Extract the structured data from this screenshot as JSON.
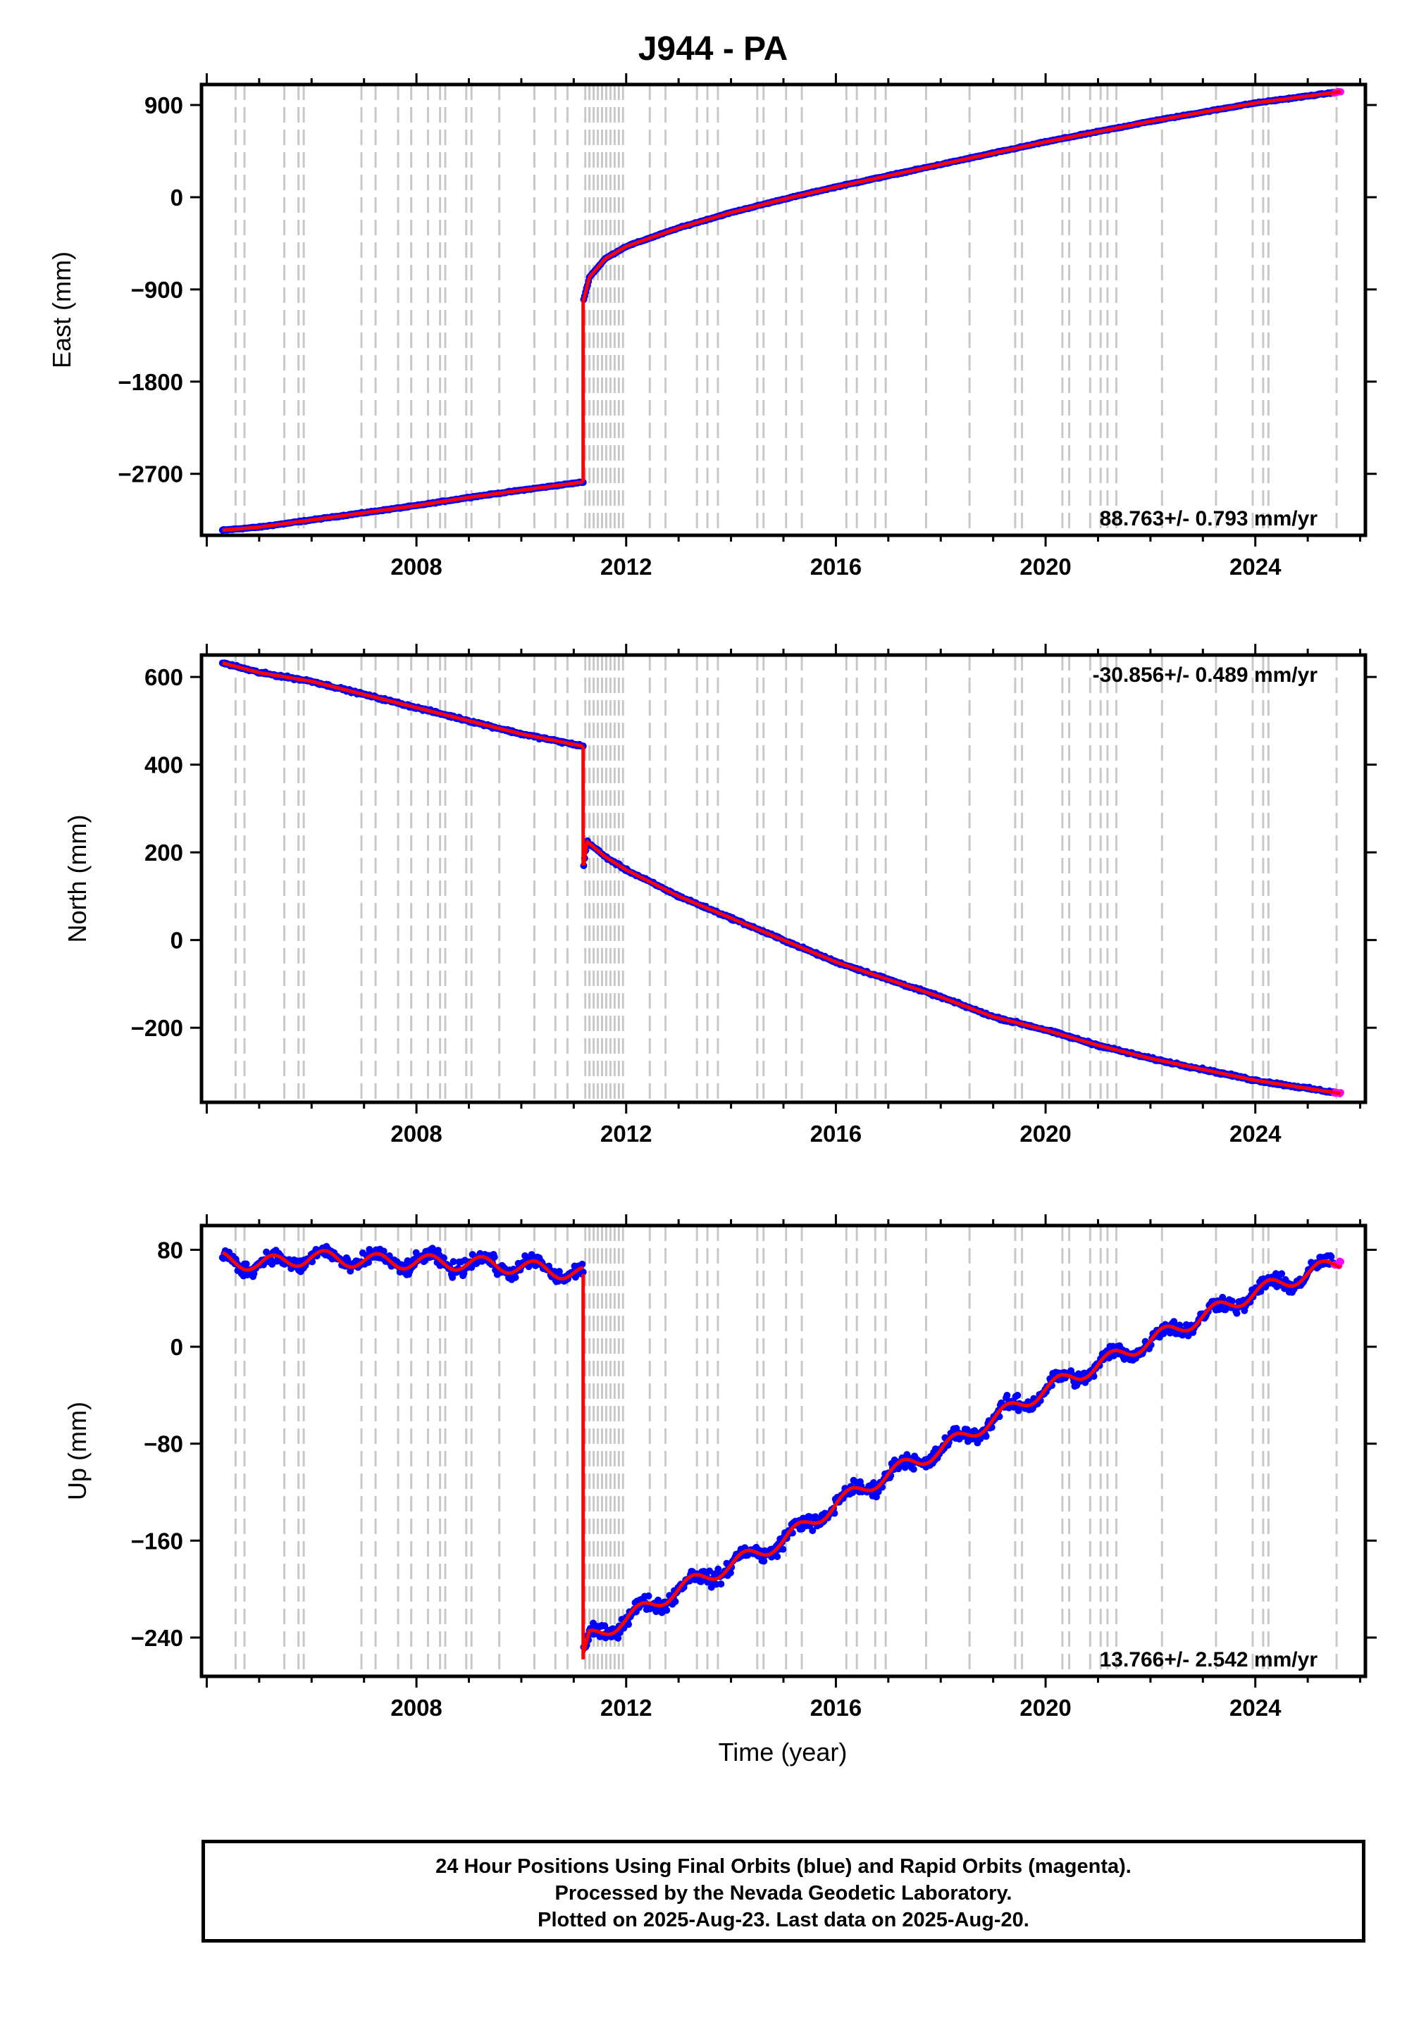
{
  "title": "J944 - PA",
  "xlabel": "Time (year)",
  "footer": {
    "line1": "24 Hour Positions Using Final Orbits (blue) and Rapid Orbits (magenta).",
    "line2": "Processed by the Nevada Geodetic Laboratory.",
    "line3": "Plotted on 2025-Aug-23. Last data on 2025-Aug-20."
  },
  "colors": {
    "final": "#0000ff",
    "rapid": "#ff00ff",
    "model": "#ff0000",
    "steps": "#c8c8c8"
  },
  "chart_data": [
    {
      "type": "scatter",
      "ylabel": "East (mm)",
      "xlim": [
        2003.9,
        2026.1
      ],
      "ylim": [
        -3300,
        1100
      ],
      "yticks": [
        900,
        0,
        -900,
        -1800,
        -2700
      ],
      "ytick_labels": [
        "900",
        "0",
        "−900",
        "−1800",
        "−2700"
      ],
      "xticks": [
        2008,
        2012,
        2016,
        2020,
        2024
      ],
      "xtick_labels": [
        "2008",
        "2012",
        "2016",
        "2020",
        "2024"
      ],
      "rate": "88.763+/- 0.793 mm/yr",
      "rate_pos": "bottom-right",
      "series": [
        {
          "segment": "pre",
          "x": [
            2004.3,
            2005.0,
            2006.0,
            2007.0,
            2008.0,
            2009.0,
            2010.0,
            2011.18
          ],
          "y": [
            -3250,
            -3220,
            -3150,
            -3080,
            -3010,
            -2930,
            -2860,
            -2780
          ]
        },
        {
          "segment": "post",
          "x": [
            2011.19,
            2011.3,
            2011.6,
            2012.0,
            2013.0,
            2014.0,
            2015.0,
            2016.0,
            2017.0,
            2018.0,
            2019.0,
            2020.0,
            2021.0,
            2022.0,
            2023.0,
            2024.0,
            2025.63
          ],
          "y": [
            -1000,
            -780,
            -600,
            -480,
            -300,
            -150,
            -20,
            100,
            210,
            320,
            430,
            540,
            640,
            740,
            830,
            920,
            1030
          ]
        }
      ]
    },
    {
      "type": "scatter",
      "ylabel": "North (mm)",
      "xlim": [
        2003.9,
        2026.1
      ],
      "ylim": [
        -370,
        650
      ],
      "yticks": [
        600,
        400,
        200,
        0,
        -200
      ],
      "ytick_labels": [
        "600",
        "400",
        "200",
        "0",
        "−200"
      ],
      "xticks": [
        2008,
        2012,
        2016,
        2020,
        2024
      ],
      "xtick_labels": [
        "2008",
        "2012",
        "2016",
        "2020",
        "2024"
      ],
      "rate": "-30.856+/- 0.489 mm/yr",
      "rate_pos": "top-right",
      "series": [
        {
          "segment": "pre",
          "x": [
            2004.3,
            2005.0,
            2006.0,
            2007.0,
            2008.0,
            2009.0,
            2010.0,
            2011.18
          ],
          "y": [
            632,
            610,
            590,
            560,
            530,
            500,
            470,
            442
          ]
        },
        {
          "segment": "post",
          "x": [
            2011.19,
            2011.25,
            2011.35,
            2011.6,
            2012.0,
            2013.0,
            2014.0,
            2015.0,
            2016.0,
            2017.0,
            2018.0,
            2019.0,
            2020.0,
            2021.0,
            2022.0,
            2023.0,
            2024.0,
            2025.63
          ],
          "y": [
            170,
            225,
            215,
            190,
            160,
            100,
            50,
            0,
            -50,
            -90,
            -130,
            -175,
            -205,
            -240,
            -270,
            -295,
            -320,
            -350
          ]
        }
      ]
    },
    {
      "type": "scatter",
      "ylabel": "Up (mm)",
      "xlabel": "Time (year)",
      "xlim": [
        2003.9,
        2026.1
      ],
      "ylim": [
        -272,
        100
      ],
      "yticks": [
        80,
        0,
        -80,
        -160,
        -240
      ],
      "ytick_labels": [
        "80",
        "0",
        "−80",
        "−160",
        "−240"
      ],
      "xticks": [
        2008,
        2012,
        2016,
        2020,
        2024
      ],
      "xtick_labels": [
        "2008",
        "2012",
        "2016",
        "2020",
        "2024"
      ],
      "rate": "13.766+/- 2.542 mm/yr",
      "rate_pos": "bottom-right",
      "series": [
        {
          "segment": "pre",
          "x": [
            2004.3,
            2005.0,
            2006.0,
            2007.0,
            2008.0,
            2009.0,
            2010.0,
            2011.18
          ],
          "y": [
            72,
            68,
            74,
            71,
            70,
            69,
            66,
            60
          ]
        },
        {
          "segment": "post",
          "x": [
            2011.19,
            2011.3,
            2012.0,
            2013.0,
            2014.0,
            2015.0,
            2016.0,
            2017.0,
            2018.0,
            2019.0,
            2020.0,
            2021.0,
            2022.0,
            2023.0,
            2024.0,
            2025.63
          ],
          "y": [
            -258,
            -240,
            -225,
            -200,
            -180,
            -160,
            -130,
            -105,
            -85,
            -60,
            -35,
            -15,
            5,
            25,
            45,
            70
          ]
        }
      ]
    }
  ],
  "step_epochs": [
    2004.55,
    2004.72,
    2005.48,
    2005.75,
    2005.85,
    2006.95,
    2007.22,
    2007.65,
    2007.9,
    2008.22,
    2008.45,
    2008.55,
    2008.95,
    2009.05,
    2009.58,
    2010.25,
    2010.65,
    2010.88,
    2011.22,
    2011.3,
    2011.38,
    2011.46,
    2011.54,
    2011.62,
    2011.7,
    2011.78,
    2011.86,
    2011.94,
    2012.45,
    2012.75,
    2013.35,
    2013.55,
    2013.75,
    2014.5,
    2014.62,
    2015.05,
    2015.35,
    2016.2,
    2016.4,
    2016.75,
    2016.95,
    2017.72,
    2018.55,
    2019.42,
    2019.55,
    2020.32,
    2020.45,
    2020.85,
    2021.05,
    2021.18,
    2021.35,
    2022.22,
    2023.25,
    2023.95,
    2024.15,
    2024.25,
    2025.55
  ]
}
